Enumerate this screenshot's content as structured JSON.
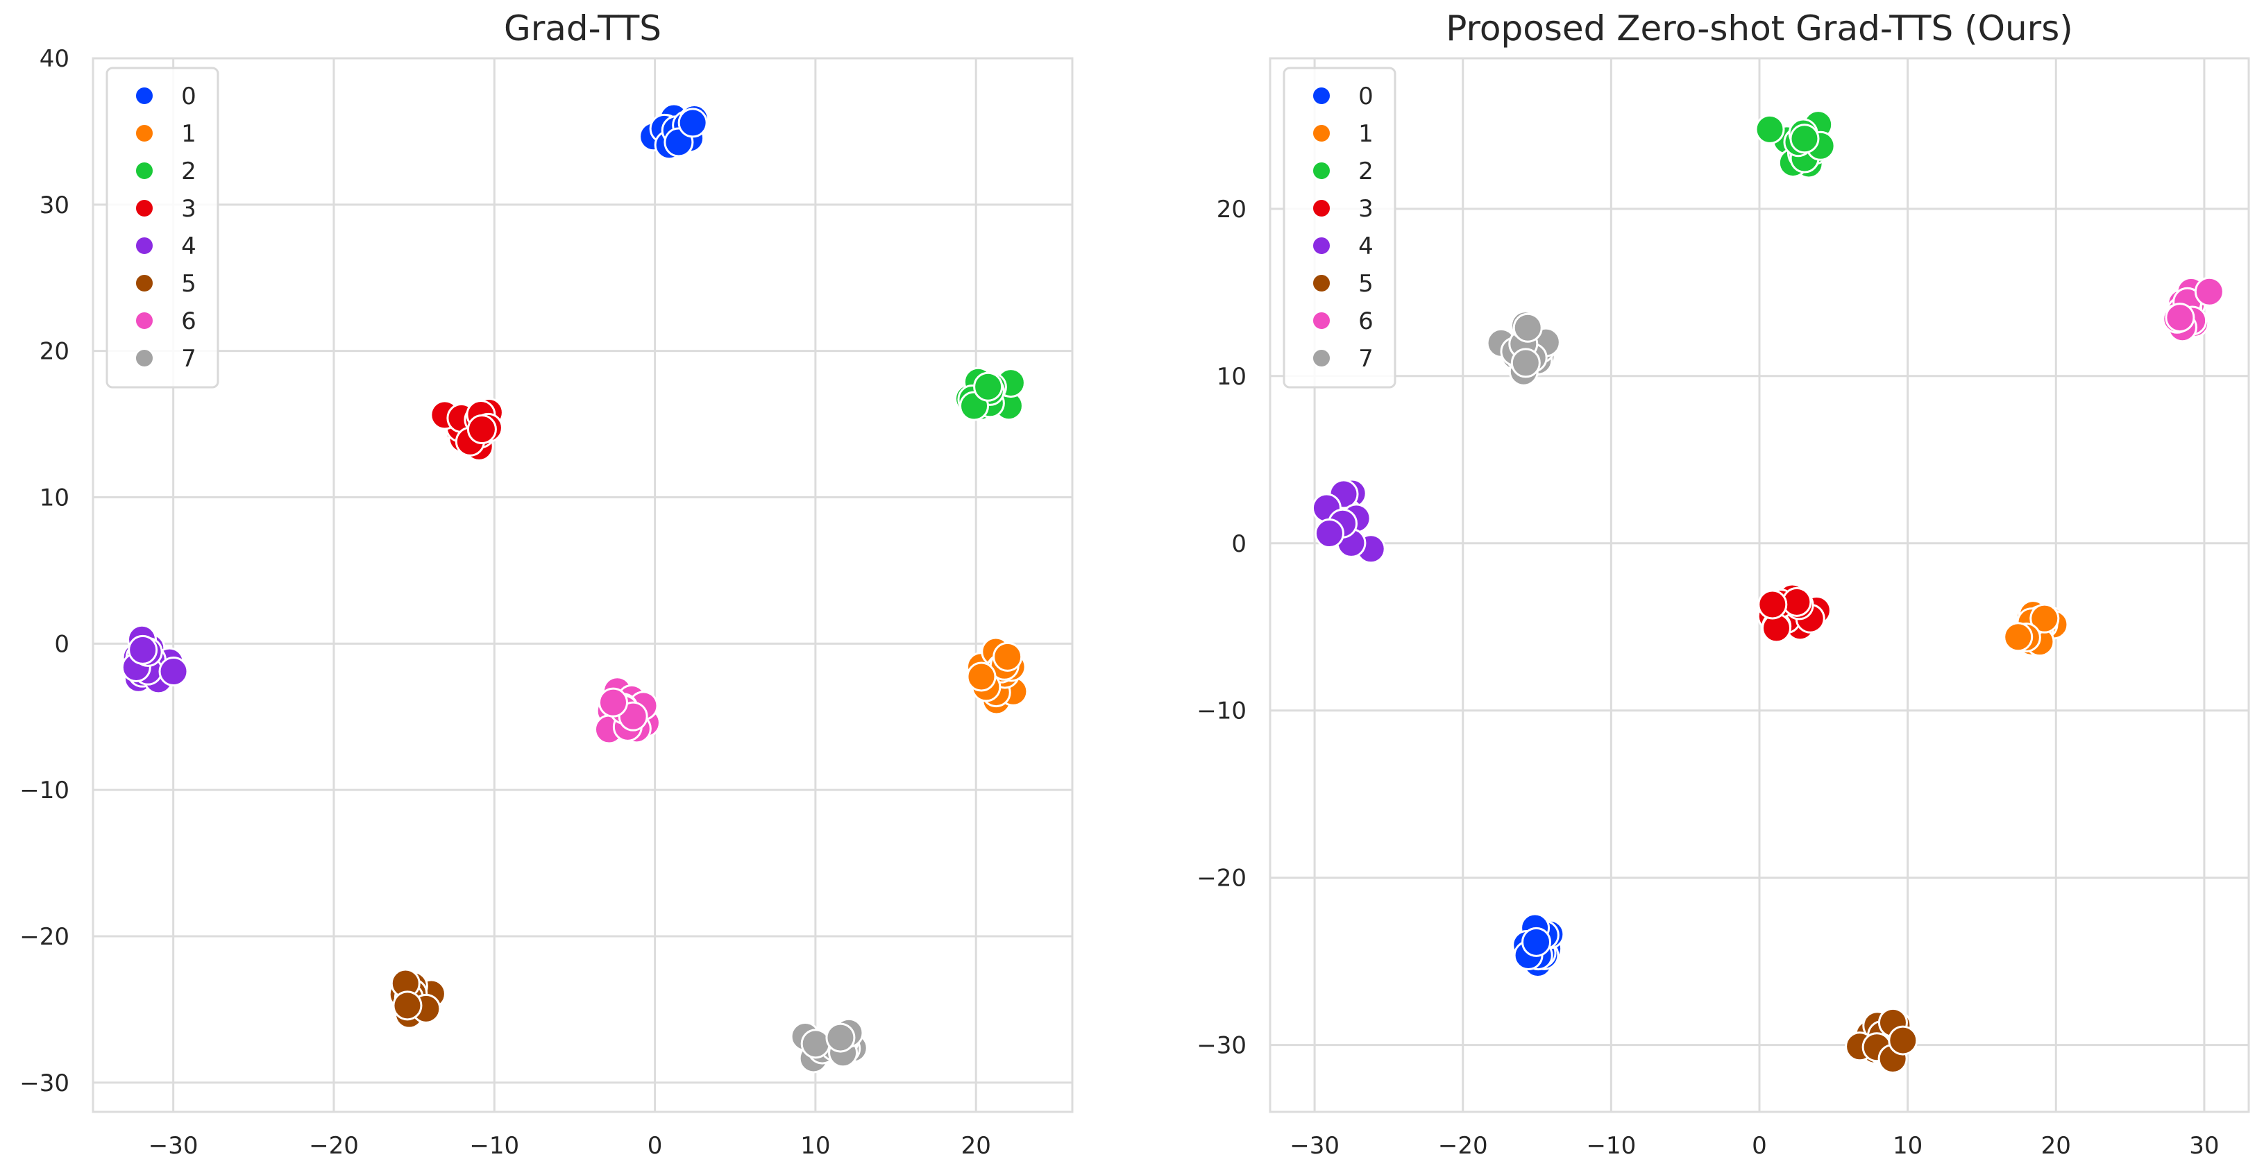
{
  "colors": {
    "0": "#023eff",
    "1": "#ff7c00",
    "2": "#1ac938",
    "3": "#e8000b",
    "4": "#8b2be2",
    "5": "#9f4800",
    "6": "#f14cc1",
    "7": "#a3a3a3",
    "grid": "#dcdcdc",
    "background": "#ffffff"
  },
  "chart_data": [
    {
      "type": "scatter",
      "title": "Grad-TTS",
      "xlabel": "",
      "ylabel": "",
      "xlim": [
        -35,
        26
      ],
      "ylim": [
        -32,
        40
      ],
      "xticks": [
        -30,
        -20,
        -10,
        0,
        10,
        20
      ],
      "xtick_labels": [
        "−30",
        "−20",
        "−10",
        "0",
        "10",
        "20"
      ],
      "yticks": [
        -30,
        -20,
        -10,
        0,
        10,
        20,
        30,
        40
      ],
      "ytick_labels": [
        "−30",
        "−20",
        "−10",
        "0",
        "10",
        "20",
        "30",
        "40"
      ],
      "grid": true,
      "legend": {
        "placement": "top-left",
        "entries": [
          "0",
          "1",
          "2",
          "3",
          "4",
          "5",
          "6",
          "7"
        ]
      },
      "series": [
        {
          "name": "0",
          "center": [
            1.5,
            35
          ],
          "spread": [
            1.4,
            1.2
          ],
          "points": 16
        },
        {
          "name": "1",
          "center": [
            21.5,
            -2
          ],
          "spread": [
            1.3,
            1.3
          ],
          "points": 16
        },
        {
          "name": "2",
          "center": [
            21,
            16.8
          ],
          "spread": [
            1.3,
            1.3
          ],
          "points": 16
        },
        {
          "name": "3",
          "center": [
            -11.5,
            14.8
          ],
          "spread": [
            1.4,
            1.2
          ],
          "points": 16
        },
        {
          "name": "4",
          "center": [
            -31.5,
            -1.5
          ],
          "spread": [
            1.3,
            1.3
          ],
          "points": 16
        },
        {
          "name": "5",
          "center": [
            -15,
            -24.5
          ],
          "spread": [
            1.3,
            1.2
          ],
          "points": 16
        },
        {
          "name": "6",
          "center": [
            -1.5,
            -4.8
          ],
          "spread": [
            1.3,
            1.3
          ],
          "points": 16
        },
        {
          "name": "7",
          "center": [
            11,
            -27.5
          ],
          "spread": [
            1.3,
            1.1
          ],
          "points": 16
        }
      ]
    },
    {
      "type": "scatter",
      "title": "Proposed Zero-shot Grad-TTS (Ours)",
      "xlabel": "",
      "ylabel": "",
      "xlim": [
        -33,
        33
      ],
      "ylim": [
        -34,
        29
      ],
      "xticks": [
        -30,
        -20,
        -10,
        0,
        10,
        20,
        30
      ],
      "xtick_labels": [
        "−30",
        "−20",
        "−10",
        "0",
        "10",
        "20",
        "30"
      ],
      "yticks": [
        -30,
        -20,
        -10,
        0,
        10,
        20
      ],
      "ytick_labels": [
        "−30",
        "−20",
        "−10",
        "0",
        "10",
        "20"
      ],
      "grid": true,
      "legend": {
        "placement": "top-left",
        "entries": [
          "0",
          "1",
          "2",
          "3",
          "4",
          "5",
          "6",
          "7"
        ]
      },
      "series": [
        {
          "name": "0",
          "center": [
            -15,
            -23.8
          ],
          "spread": [
            1.2,
            1.4
          ],
          "points": 16
        },
        {
          "name": "1",
          "center": [
            19,
            -5
          ],
          "spread": [
            1.3,
            1.3
          ],
          "points": 16
        },
        {
          "name": "2",
          "center": [
            3,
            23.8
          ],
          "spread": [
            1.2,
            1.5
          ],
          "points": 16
        },
        {
          "name": "3",
          "center": [
            2,
            -3.8
          ],
          "spread": [
            1.5,
            1.0
          ],
          "points": 16
        },
        {
          "name": "4",
          "center": [
            -28,
            1.2
          ],
          "spread": [
            1.2,
            1.4
          ],
          "points": 16
        },
        {
          "name": "5",
          "center": [
            8,
            -29.5
          ],
          "spread": [
            1.1,
            1.5
          ],
          "points": 16
        },
        {
          "name": "6",
          "center": [
            29,
            13.8
          ],
          "spread": [
            1.2,
            1.3
          ],
          "points": 16
        },
        {
          "name": "7",
          "center": [
            -15.5,
            11.8
          ],
          "spread": [
            1.2,
            1.3
          ],
          "points": 16
        }
      ]
    }
  ]
}
